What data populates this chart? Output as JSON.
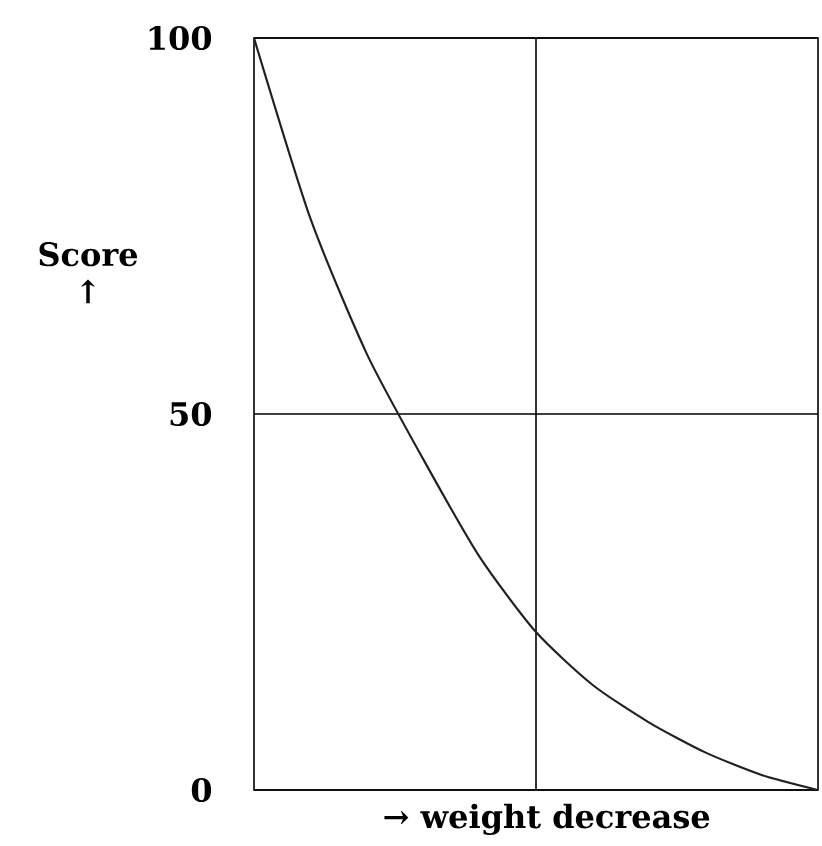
{
  "chart_data": {
    "type": "line",
    "xlabel": "→ weight decrease",
    "ylabel": "Score ↑",
    "categories": [
      null,
      null,
      null,
      null,
      null,
      null,
      null,
      null,
      null,
      null,
      null
    ],
    "series": [
      {
        "color": "#231f20",
        "values": [
          100,
          76,
          58,
          44,
          31,
          21,
          14,
          9,
          5,
          2,
          0
        ]
      }
    ],
    "ylim": [
      0,
      100
    ],
    "yticks": [
      0,
      50,
      100
    ],
    "grid": true,
    "tick_labels": "y"
  }
}
